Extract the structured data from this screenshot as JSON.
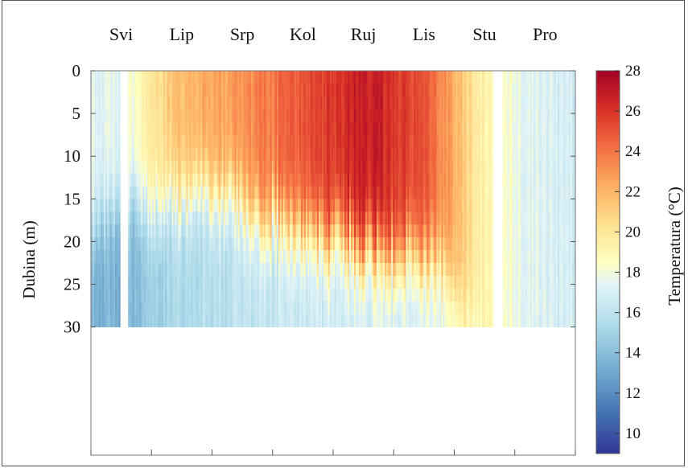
{
  "chart_data": {
    "type": "heatmap",
    "title": "",
    "xlabel": "",
    "ylabel": "Dubina (m)",
    "x_categories": [
      "Svi",
      "Lip",
      "Srp",
      "Kol",
      "Ruj",
      "Lis",
      "Stu",
      "Pro"
    ],
    "y_ticks": [
      0,
      5,
      10,
      15,
      20,
      25,
      30
    ],
    "ylim": [
      0,
      45
    ],
    "y_reversed": true,
    "data_depth_max": 30,
    "colorbar": {
      "label": "Temperatura (°C)",
      "min": 9,
      "max": 28,
      "ticks": [
        10,
        12,
        14,
        16,
        18,
        20,
        22,
        24,
        26,
        28
      ],
      "colormap": "RdYlBu_r"
    },
    "profiles": [
      {
        "segment": "Svi",
        "surface_temp": 17.5,
        "bottom_temp": 13.5,
        "thermocline_depth": 16
      },
      {
        "segment": "Svi-Lip",
        "surface_temp": 22,
        "bottom_temp": 15.5,
        "thermocline_depth": 14
      },
      {
        "segment": "Lip-Srp",
        "surface_temp": 23,
        "bottom_temp": 16,
        "thermocline_depth": 15
      },
      {
        "segment": "Srp-Kol",
        "surface_temp": 25,
        "bottom_temp": 16.5,
        "thermocline_depth": 18
      },
      {
        "segment": "Kol-Ruj",
        "surface_temp": 27,
        "bottom_temp": 17,
        "thermocline_depth": 20
      },
      {
        "segment": "Ruj-Lis",
        "surface_temp": 25,
        "bottom_temp": 17,
        "thermocline_depth": 21
      },
      {
        "segment": "Lis-Stu",
        "surface_temp": 19,
        "bottom_temp": 18.5,
        "thermocline_depth": 30
      },
      {
        "segment": "Pro",
        "surface_temp": 17,
        "bottom_temp": 17,
        "thermocline_depth": 30
      }
    ],
    "grid": false,
    "legend": "colorbar-right"
  }
}
